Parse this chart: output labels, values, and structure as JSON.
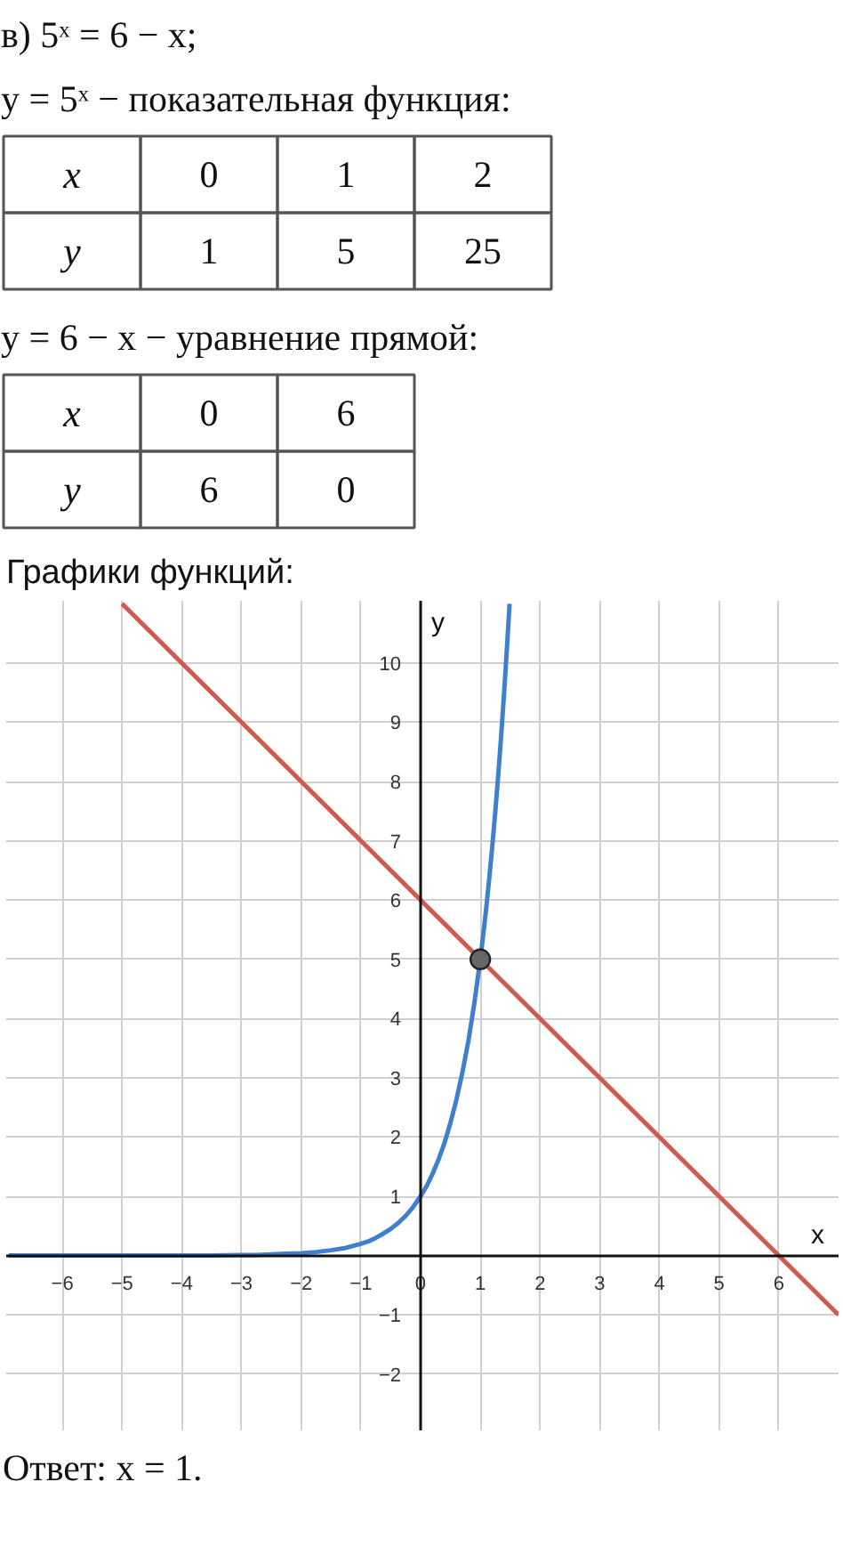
{
  "chart_data": [
    {
      "type": "other",
      "title": "в) 5ˣ = 6 − x;",
      "subtitle": "y = 5ˣ − показательная функция:",
      "annotations": [
        "x",
        "0",
        "1",
        "2",
        "y",
        "1",
        "5",
        "25"
      ]
    },
    {
      "type": "other",
      "title": "y = 6 − x − уравнение прямой:",
      "annotations": [
        "x",
        "0",
        "6",
        "y",
        "6",
        "0"
      ]
    },
    {
      "type": "line",
      "title": "Графики функций:",
      "xlabel": "x",
      "ylabel": "y",
      "xlim": [
        -6.94,
        7.0
      ],
      "ylim": [
        -2.95,
        11.05
      ],
      "xticks": [
        -6,
        -5,
        -4,
        -3,
        -2,
        -1,
        0,
        1,
        2,
        3,
        4,
        5,
        6
      ],
      "yticks": [
        -2,
        -1,
        1,
        2,
        3,
        4,
        5,
        6,
        7,
        8,
        9,
        10
      ],
      "grid": true,
      "series": [
        {
          "color": "#3f7fcb",
          "x": [
            -6.9,
            -6.5,
            -6,
            -5.5,
            -5,
            -4.5,
            -4,
            -3.5,
            -3,
            -2.75,
            -2.5,
            -2.25,
            -2,
            -1.75,
            -1.5,
            -1.25,
            -1,
            -0.875,
            -0.75,
            -0.625,
            -0.5,
            -0.375,
            -0.25,
            -0.125,
            0,
            0.1,
            0.2,
            0.3,
            0.4,
            0.5,
            0.6,
            0.7,
            0.8,
            0.9,
            1,
            1.05,
            1.1,
            1.15,
            1.2,
            1.25,
            1.3,
            1.35,
            1.4,
            1.45,
            1.49
          ],
          "values": [
            0,
            0,
            0,
            0,
            0,
            0,
            0,
            0,
            0.01,
            0.01,
            0.02,
            0.03,
            0.04,
            0.06,
            0.09,
            0.13,
            0.2,
            0.24,
            0.3,
            0.37,
            0.45,
            0.55,
            0.67,
            0.82,
            1,
            1.17,
            1.38,
            1.62,
            1.9,
            2.24,
            2.63,
            3.09,
            3.62,
            4.26,
            5,
            5.42,
            5.87,
            6.37,
            6.9,
            7.48,
            8.1,
            8.78,
            9.52,
            10.32,
            11.0
          ]
        },
        {
          "color": "#cf5a4e",
          "x": [
            -5,
            7
          ],
          "values": [
            11,
            -1
          ]
        },
        {
          "type": "scatter",
          "color": "#666666",
          "marker": "circle",
          "x": [
            1
          ],
          "values": [
            5
          ]
        }
      ],
      "annotations": [
        "Ответ: x = 1."
      ]
    }
  ]
}
